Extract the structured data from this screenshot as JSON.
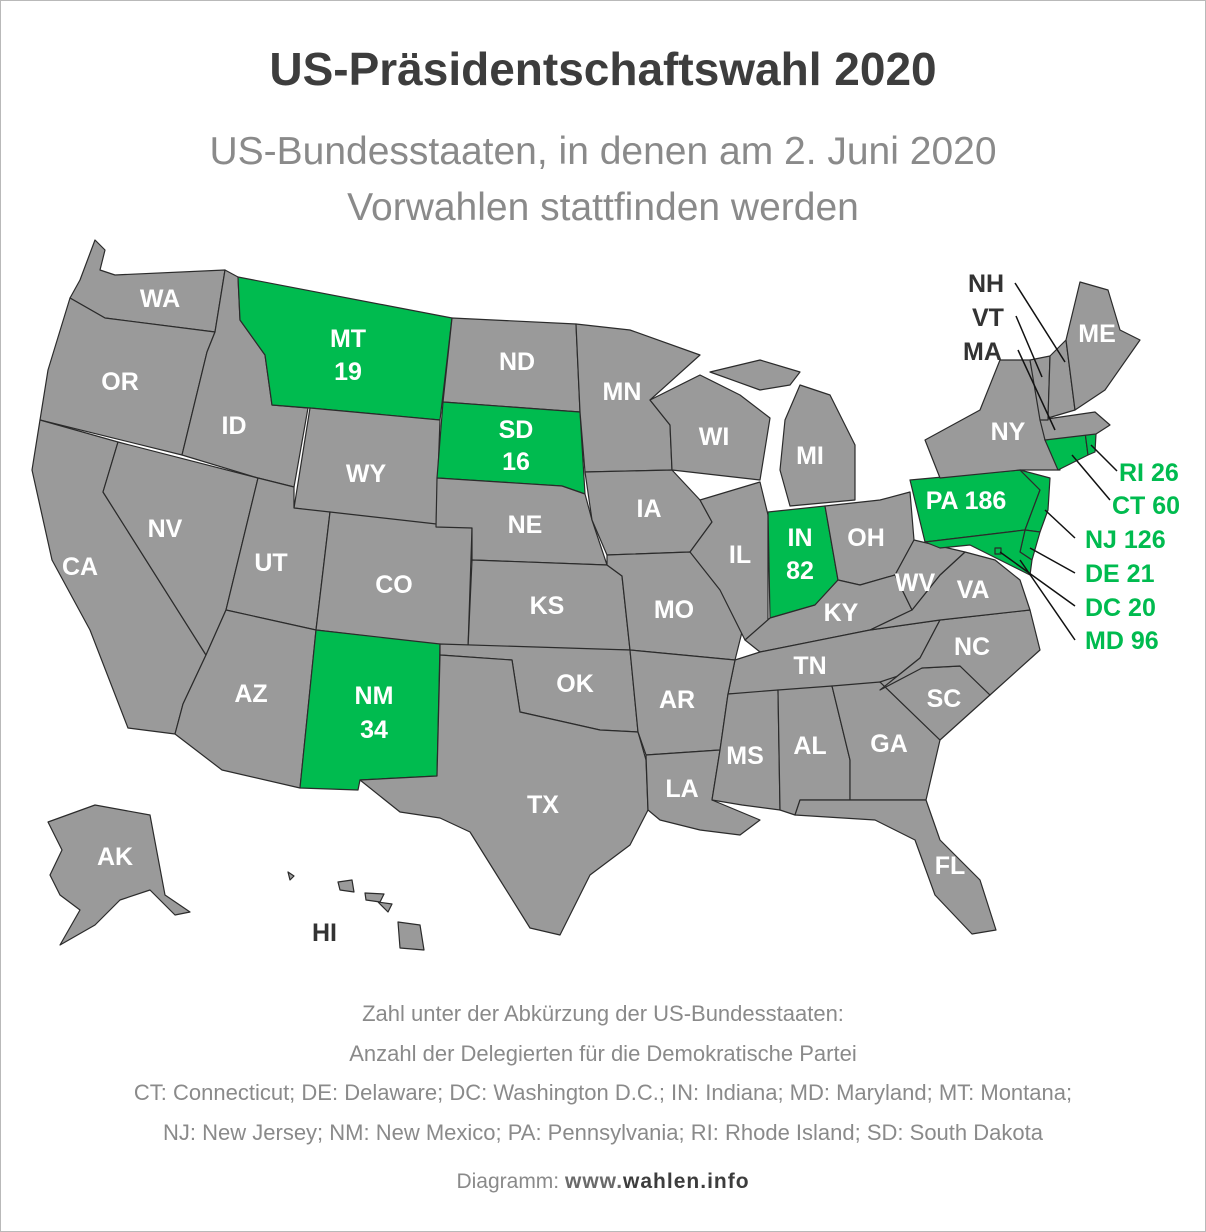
{
  "title": "US-Präsidentschaftswahl 2020",
  "subtitle_line1": "US-Bundesstaaten, in denen am 2. Juni 2020",
  "subtitle_line2": "Vorwahlen stattfinden werden",
  "colors": {
    "highlight": "#00bb4f",
    "state": "#9a9a9a",
    "border": "#2b2b2b",
    "title": "#3d3d3d",
    "muted": "#8a8a8a"
  },
  "map": {
    "highlighted": [
      {
        "abbr": "MT",
        "delegates": "19"
      },
      {
        "abbr": "SD",
        "delegates": "16"
      },
      {
        "abbr": "NM",
        "delegates": "34"
      },
      {
        "abbr": "IN",
        "delegates": "82"
      },
      {
        "abbr": "PA",
        "delegates": "186"
      },
      {
        "abbr": "RI",
        "delegates": "26"
      },
      {
        "abbr": "CT",
        "delegates": "60"
      },
      {
        "abbr": "NJ",
        "delegates": "126"
      },
      {
        "abbr": "DE",
        "delegates": "21"
      },
      {
        "abbr": "DC",
        "delegates": "20"
      },
      {
        "abbr": "MD",
        "delegates": "96"
      }
    ],
    "labels": {
      "WA": "WA",
      "OR": "OR",
      "CA": "CA",
      "ID": "ID",
      "NV": "NV",
      "UT": "UT",
      "AZ": "AZ",
      "WY": "WY",
      "CO": "CO",
      "ND": "ND",
      "NE": "NE",
      "KS": "KS",
      "OK": "OK",
      "TX": "TX",
      "MN": "MN",
      "IA": "IA",
      "MO": "MO",
      "AR": "AR",
      "LA": "LA",
      "WI": "WI",
      "IL": "IL",
      "MI": "MI",
      "OH": "OH",
      "KY": "KY",
      "TN": "TN",
      "MS": "MS",
      "AL": "AL",
      "GA": "GA",
      "FL": "FL",
      "SC": "SC",
      "NC": "NC",
      "VA": "VA",
      "WV": "WV",
      "NY": "NY",
      "ME": "ME",
      "NH": "NH",
      "VT": "VT",
      "MA": "MA",
      "AK": "AK",
      "HI": "HI",
      "MT": "MT",
      "SD": "SD",
      "NM": "NM",
      "IN": "IN",
      "PA": "PA 186",
      "RI": "RI 26",
      "CT": "CT 60",
      "NJ": "NJ 126",
      "DE": "DE 21",
      "DC": "DC 20",
      "MD": "MD 96",
      "MT_num": "19",
      "SD_num": "16",
      "NM_num": "34",
      "IN_num": "82"
    }
  },
  "notes": {
    "line1": "Zahl unter der Abkürzung der US-Bundesstaaten:",
    "line2": "Anzahl der Delegierten für die Demokratische Partei",
    "line3": "CT: Connecticut; DE: Delaware; DC: Washington D.C.; IN: Indiana; MD: Maryland; MT: Montana;",
    "line4": "NJ: New Jersey; NM: New Mexico; PA: Pennsylvania; RI: Rhode Island; SD: South Dakota"
  },
  "credit": {
    "prefix": "Diagramm:",
    "www": "www.",
    "domain": "wahlen.info"
  }
}
